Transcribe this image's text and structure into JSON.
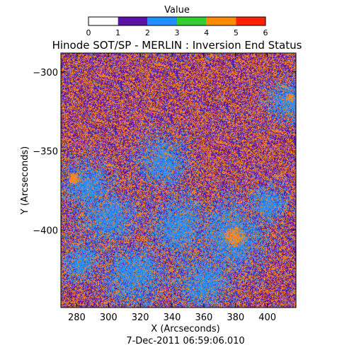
{
  "chart_data": {
    "type": "heatmap",
    "title": "Hinode SOT/SP - MERLIN : Inversion End Status",
    "xlabel": "X (Arcseconds)",
    "ylabel": "Y (Arcseconds)",
    "footer": "7-Dec-2011 06:59:06.010",
    "xlim": [
      270,
      418
    ],
    "ylim": [
      -449,
      -288
    ],
    "x_ticks": [
      280,
      300,
      320,
      340,
      360,
      380,
      400
    ],
    "y_ticks": [
      -300,
      -350,
      -400
    ],
    "x_tick_labels": [
      "280",
      "300",
      "320",
      "340",
      "360",
      "380",
      "400"
    ],
    "y_tick_labels": [
      "−300",
      "−350",
      "−400"
    ],
    "colorbar": {
      "label": "Value",
      "range": [
        0,
        6
      ],
      "ticks": [
        0,
        1,
        2,
        3,
        4,
        5,
        6
      ],
      "tick_labels": [
        "0",
        "1",
        "2",
        "3",
        "4",
        "5",
        "6"
      ],
      "segments": [
        {
          "from": 0,
          "to": 1,
          "color": "#ffffff"
        },
        {
          "from": 1,
          "to": 2,
          "color": "#5a12a8"
        },
        {
          "from": 2,
          "to": 3,
          "color": "#1e90ff"
        },
        {
          "from": 3,
          "to": 4,
          "color": "#32cd32"
        },
        {
          "from": 4,
          "to": 5,
          "color": "#ff8c00"
        },
        {
          "from": 5,
          "to": 6,
          "color": "#ff2200"
        }
      ]
    },
    "dominant_values": [
      1,
      2,
      4
    ],
    "value_colors": {
      "1": "#5a12a8",
      "2": "#2b8cf0",
      "4": "#ff8a1c"
    },
    "blue_regions": [
      {
        "x": 376,
        "y": -404,
        "r": 26
      },
      {
        "x": 345,
        "y": -397,
        "r": 22
      },
      {
        "x": 300,
        "y": -392,
        "r": 20
      },
      {
        "x": 287,
        "y": -372,
        "r": 18
      },
      {
        "x": 334,
        "y": -357,
        "r": 18
      },
      {
        "x": 412,
        "y": -318,
        "r": 14
      },
      {
        "x": 316,
        "y": -428,
        "r": 22
      },
      {
        "x": 360,
        "y": -433,
        "r": 20
      },
      {
        "x": 400,
        "y": -383,
        "r": 14
      },
      {
        "x": 282,
        "y": -420,
        "r": 14
      }
    ],
    "orange_regions": [
      {
        "x": 379,
        "y": -404,
        "r": 7
      },
      {
        "x": 278,
        "y": -367,
        "r": 4
      },
      {
        "x": 414,
        "y": -316,
        "r": 3
      }
    ]
  }
}
